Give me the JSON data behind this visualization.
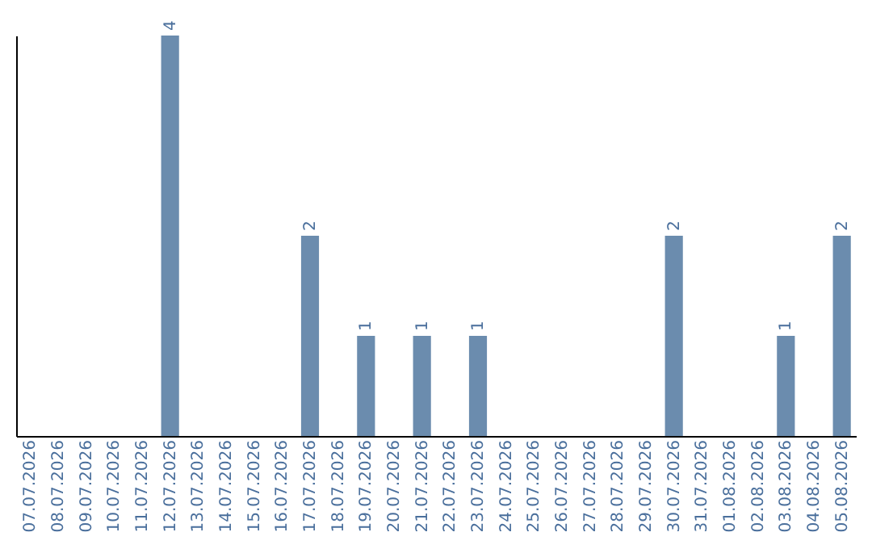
{
  "chart_data": {
    "type": "bar",
    "categories": [
      "07.07.2026",
      "08.07.2026",
      "09.07.2026",
      "10.07.2026",
      "11.07.2026",
      "12.07.2026",
      "13.07.2026",
      "14.07.2026",
      "15.07.2026",
      "16.07.2026",
      "17.07.2026",
      "18.07.2026",
      "19.07.2026",
      "20.07.2026",
      "21.07.2026",
      "22.07.2026",
      "23.07.2026",
      "24.07.2026",
      "25.07.2026",
      "26.07.2026",
      "27.07.2026",
      "28.07.2026",
      "29.07.2026",
      "30.07.2026",
      "31.07.2026",
      "01.08.2026",
      "02.08.2026",
      "03.08.2026",
      "04.08.2026",
      "05.08.2026"
    ],
    "values": [
      0,
      0,
      0,
      0,
      0,
      4,
      0,
      0,
      0,
      0,
      2,
      0,
      1,
      0,
      1,
      0,
      1,
      0,
      0,
      0,
      0,
      0,
      0,
      2,
      0,
      0,
      0,
      1,
      0,
      2
    ],
    "value_labels": [
      null,
      null,
      null,
      null,
      null,
      "4",
      null,
      null,
      null,
      null,
      "2",
      null,
      "1",
      null,
      "1",
      null,
      "1",
      null,
      null,
      null,
      null,
      null,
      null,
      "2",
      null,
      null,
      null,
      "1",
      null,
      "2"
    ],
    "color": "#6b8cae",
    "tick_labels": "x"
  }
}
